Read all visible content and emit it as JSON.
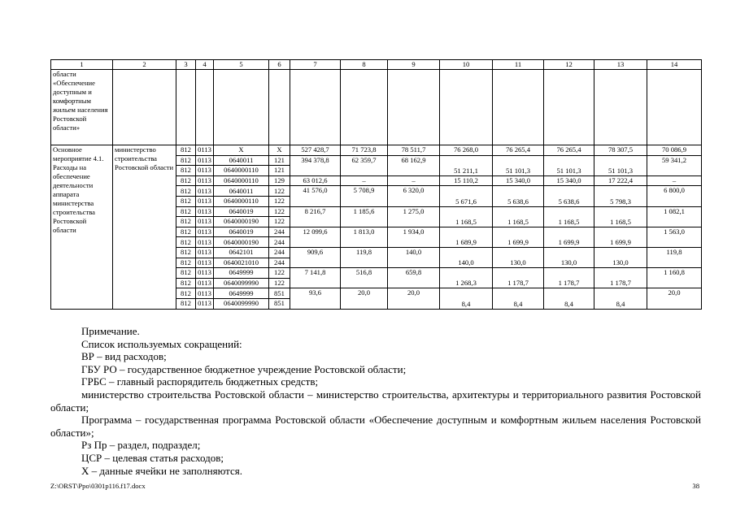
{
  "table": {
    "header": [
      "1",
      "2",
      "3",
      "4",
      "5",
      "6",
      "7",
      "8",
      "9",
      "10",
      "11",
      "12",
      "13",
      "14"
    ],
    "continued_row_col1": "области «Обеспечение доступным и комфортным жильем населения Ростовской области»",
    "main_col1": "Основное мероприятие 4.1. Расходы на обеспечение деятельности аппарата министерства строительства Ростовской области",
    "main_col2": "министерство строительства Ростовской области",
    "groups": [
      {
        "rows": [
          [
            "812",
            "0113",
            "X",
            "X"
          ]
        ],
        "values": [
          "527 428,7",
          "71 723,8",
          "78 511,7",
          "76 268,0",
          "76 265,4",
          "76 265,4",
          "78 307,5",
          "70 086,9"
        ]
      },
      {
        "rows": [
          [
            "812",
            "0113",
            "0640011",
            "121"
          ],
          [
            "812",
            "0113",
            "0640000110",
            "121"
          ]
        ],
        "values": [
          "394 378,8",
          "62 359,7",
          "68 162,9",
          "51 211,1",
          "51 101,3",
          "51 101,3",
          "51 101,3",
          "59 341,2"
        ]
      },
      {
        "rows": [
          [
            "812",
            "0113",
            "0640000110",
            "129"
          ]
        ],
        "values": [
          "63 012,6",
          "–",
          "–",
          "15 110,2",
          "15 340,0",
          "15 340,0",
          "17 222,4",
          "–"
        ]
      },
      {
        "rows": [
          [
            "812",
            "0113",
            "0640011",
            "122"
          ],
          [
            "812",
            "0113",
            "0640000110",
            "122"
          ]
        ],
        "values": [
          "41 576,0",
          "5 708,9",
          "6 320,0",
          "5 671,6",
          "5 638,6",
          "5 638,6",
          "5 798,3",
          "6 800,0"
        ]
      },
      {
        "rows": [
          [
            "812",
            "0113",
            "0640019",
            "122"
          ],
          [
            "812",
            "0113",
            "0640000190",
            "122"
          ]
        ],
        "values": [
          "8 216,7",
          "1 185,6",
          "1 275,0",
          "1 168,5",
          "1 168,5",
          "1 168,5",
          "1 168,5",
          "1 082,1"
        ]
      },
      {
        "rows": [
          [
            "812",
            "0113",
            "0640019",
            "244"
          ],
          [
            "812",
            "0113",
            "0640000190",
            "244"
          ]
        ],
        "values": [
          "12 099,6",
          "1 813,0",
          "1 934,0",
          "1 689,9",
          "1 699,9",
          "1 699,9",
          "1 699,9",
          "1 563,0"
        ]
      },
      {
        "rows": [
          [
            "812",
            "0113",
            "0642101",
            "244"
          ],
          [
            "812",
            "0113",
            "0640021010",
            "244"
          ]
        ],
        "values": [
          "909,6",
          "119,8",
          "140,0",
          "140,0",
          "130,0",
          "130,0",
          "130,0",
          "119,8"
        ]
      },
      {
        "rows": [
          [
            "812",
            "0113",
            "0649999",
            "122"
          ],
          [
            "812",
            "0113",
            "0640099990",
            "122"
          ]
        ],
        "values": [
          "7 141,8",
          "516,8",
          "659,8",
          "1 268,3",
          "1 178,7",
          "1 178,7",
          "1 178,7",
          "1 160,8"
        ]
      },
      {
        "rows": [
          [
            "812",
            "0113",
            "0649999",
            "851"
          ],
          [
            "812",
            "0113",
            "0640099990",
            "851"
          ]
        ],
        "values": [
          "93,6",
          "20,0",
          "20,0",
          "8,4",
          "8,4",
          "8,4",
          "8,4",
          "20,0"
        ]
      }
    ]
  },
  "notes": [
    "Примечание.",
    "Список используемых сокращений:",
    "ВР – вид расходов;",
    "ГБУ РО – государственное бюджетное учреждение Ростовской области;",
    "ГРБС – главный распорядитель бюджетных средств;",
    "министерство строительства Ростовской области – министерство строительства, архитектуры и территориального развития Ростовской области;",
    "Программа – государственная программа Ростовской области «Обеспечение доступным и комфортным жильем населения Ростовской области»;",
    "Рз Пр – раздел, подраздел;",
    "ЦСР – целевая статья расходов;",
    "Х – данные ячейки не заполняются."
  ],
  "footer": {
    "file_path": "Z:\\ORST\\Ppo\\0301p116.f17.docx",
    "page_number": "38"
  }
}
